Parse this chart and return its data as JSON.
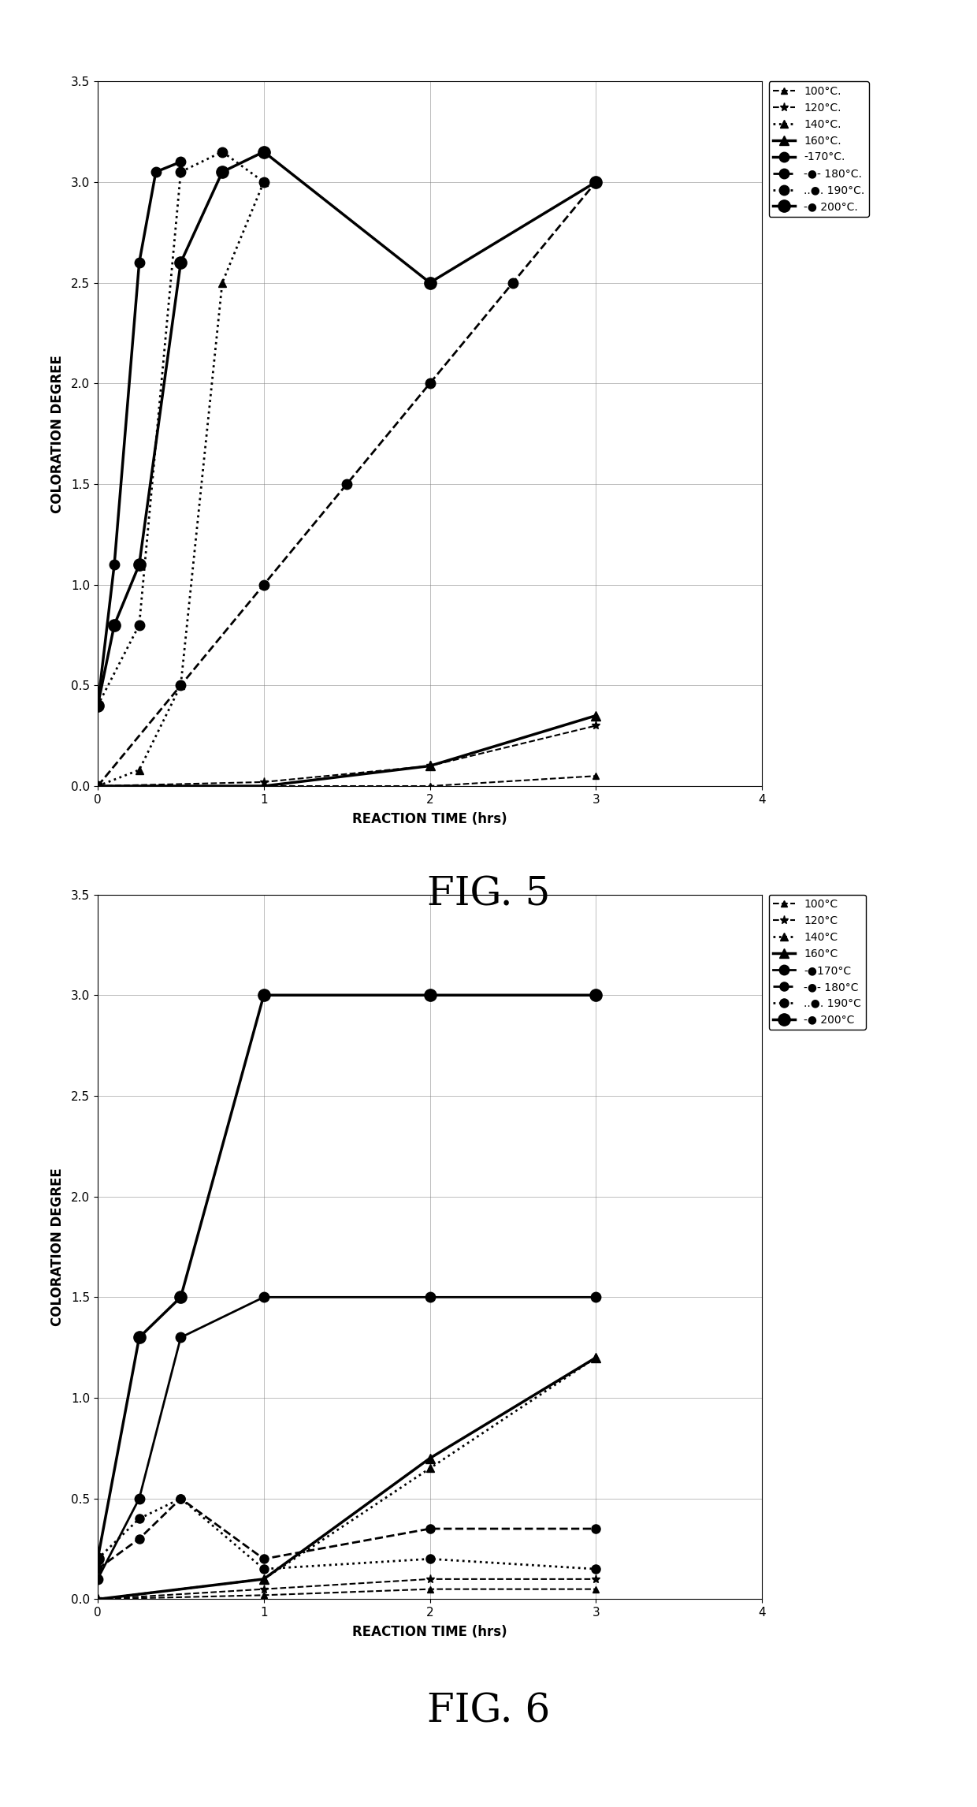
{
  "fig5": {
    "title": "FIG. 5",
    "xlabel": "REACTION TIME (hrs)",
    "ylabel": "COLORATION DEGREE",
    "xlim": [
      0,
      4
    ],
    "ylim": [
      0,
      3.5
    ],
    "xticks": [
      0,
      1,
      2,
      3,
      4
    ],
    "yticks": [
      0,
      0.5,
      1.0,
      1.5,
      2.0,
      2.5,
      3.0,
      3.5
    ],
    "series": {
      "100C": {
        "x": [
          0,
          1,
          2,
          3
        ],
        "y": [
          0,
          0,
          0,
          0.05
        ],
        "ls": "--",
        "marker": "^",
        "lw": 1.5,
        "ms": 6
      },
      "120C": {
        "x": [
          0,
          1,
          2,
          3
        ],
        "y": [
          0,
          0.02,
          0.1,
          0.3
        ],
        "ls": "--",
        "marker": "*",
        "lw": 1.5,
        "ms": 8
      },
      "140C": {
        "x": [
          0,
          0.25,
          0.5,
          0.75,
          1.0
        ],
        "y": [
          0,
          0.08,
          0.5,
          2.5,
          3.0
        ],
        "ls": ":",
        "marker": "^",
        "lw": 2.0,
        "ms": 7
      },
      "160C": {
        "x": [
          0,
          1,
          2,
          3
        ],
        "y": [
          0,
          0.0,
          0.1,
          0.35
        ],
        "ls": "-",
        "marker": "^",
        "lw": 2.5,
        "ms": 8
      },
      "170C": {
        "x": [
          0,
          0.1,
          0.25,
          0.35,
          0.5
        ],
        "y": [
          0.4,
          1.1,
          2.6,
          3.05,
          3.1
        ],
        "ls": "-",
        "marker": "o",
        "lw": 2.5,
        "ms": 9
      },
      "180C": {
        "x": [
          0,
          0.5,
          1.0,
          1.5,
          2.0,
          2.5,
          3.0
        ],
        "y": [
          0,
          0.5,
          1.0,
          1.5,
          2.0,
          2.5,
          3.0
        ],
        "ls": "--",
        "marker": "o",
        "lw": 2.0,
        "ms": 9
      },
      "190C": {
        "x": [
          0,
          0.25,
          0.5,
          0.75,
          1.0
        ],
        "y": [
          0.4,
          0.8,
          3.05,
          3.15,
          3.0
        ],
        "ls": ":",
        "marker": "o",
        "lw": 2.0,
        "ms": 9
      },
      "200C": {
        "x": [
          0,
          0.1,
          0.25,
          0.5,
          0.75,
          1.0,
          2.0,
          3.0
        ],
        "y": [
          0.4,
          0.8,
          1.1,
          2.6,
          3.05,
          3.15,
          2.5,
          3.0
        ],
        "ls": "-",
        "marker": "o",
        "lw": 2.5,
        "ms": 11
      }
    },
    "legend_labels": [
      "100°C.",
      "120°C.",
      "140°C.",
      "160°C.",
      "-170°C.",
      "-●- 180°C.",
      "..●.. 190°C.",
      "-● 200°C."
    ]
  },
  "fig6": {
    "title": "FIG. 6",
    "xlabel": "REACTION TIME (hrs)",
    "ylabel": "COLORATION DEGREE",
    "xlim": [
      0,
      4
    ],
    "ylim": [
      0,
      3.5
    ],
    "xticks": [
      0,
      1,
      2,
      3,
      4
    ],
    "yticks": [
      0,
      0.5,
      1.0,
      1.5,
      2.0,
      2.5,
      3.0,
      3.5
    ],
    "series": {
      "100C": {
        "x": [
          0,
          1,
          2,
          3
        ],
        "y": [
          0,
          0.02,
          0.05,
          0.05
        ],
        "ls": "--",
        "marker": "^",
        "lw": 1.5,
        "ms": 6
      },
      "120C": {
        "x": [
          0,
          1,
          2,
          3
        ],
        "y": [
          0,
          0.05,
          0.1,
          0.1
        ],
        "ls": "--",
        "marker": "*",
        "lw": 1.5,
        "ms": 8
      },
      "140C": {
        "x": [
          0,
          1,
          2,
          3
        ],
        "y": [
          0,
          0.1,
          0.65,
          1.2
        ],
        "ls": ":",
        "marker": "^",
        "lw": 2.0,
        "ms": 7
      },
      "160C": {
        "x": [
          0,
          1,
          2,
          3
        ],
        "y": [
          0,
          0.1,
          0.7,
          1.2
        ],
        "ls": "-",
        "marker": "^",
        "lw": 2.5,
        "ms": 8
      },
      "170C": {
        "x": [
          0,
          0.25,
          0.5,
          1.0,
          2.0,
          3.0
        ],
        "y": [
          0.1,
          0.5,
          1.3,
          1.5,
          1.5,
          1.5
        ],
        "ls": "-",
        "marker": "o",
        "lw": 2.0,
        "ms": 9
      },
      "180C": {
        "x": [
          0,
          0.25,
          0.5,
          1.0,
          2.0,
          3.0
        ],
        "y": [
          0.15,
          0.3,
          0.5,
          0.2,
          0.35,
          0.35
        ],
        "ls": "--",
        "marker": "o",
        "lw": 2.0,
        "ms": 8
      },
      "190C": {
        "x": [
          0,
          0.25,
          0.5,
          1.0,
          2.0,
          3.0
        ],
        "y": [
          0.2,
          0.4,
          0.5,
          0.15,
          0.2,
          0.15
        ],
        "ls": ":",
        "marker": "o",
        "lw": 2.0,
        "ms": 8
      },
      "200C": {
        "x": [
          0,
          0.25,
          0.5,
          1.0,
          2.0,
          3.0
        ],
        "y": [
          0.2,
          1.3,
          1.5,
          3.0,
          3.0,
          3.0
        ],
        "ls": "-",
        "marker": "o",
        "lw": 2.5,
        "ms": 11
      }
    },
    "legend_labels": [
      "100°C",
      "120°C",
      "140°C",
      "160°C",
      "-●170°C",
      "-●- 180°C",
      "..●.. 190°C",
      "-● 200°C"
    ]
  },
  "fig_title_fontsize": 36,
  "axis_label_fontsize": 12,
  "tick_fontsize": 11,
  "legend_fontsize": 10,
  "background_color": "#ffffff"
}
